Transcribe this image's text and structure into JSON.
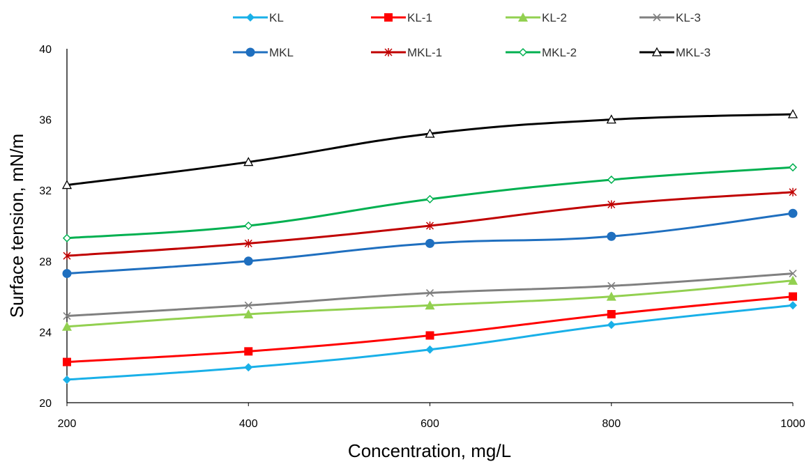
{
  "chart_data": {
    "type": "line",
    "title": "",
    "xlabel": "Concentration, mg/L",
    "ylabel": "Surface tension, mN/m",
    "x": [
      200,
      400,
      600,
      800,
      1000
    ],
    "xlim": [
      200,
      1000
    ],
    "ylim": [
      20,
      40
    ],
    "x_ticks": [
      "200",
      "400",
      "600",
      "800",
      "1000"
    ],
    "y_ticks": [
      "20",
      "24",
      "28",
      "32",
      "36",
      "40"
    ],
    "grid": false,
    "legend_position": "top",
    "series": [
      {
        "name": "KL",
        "values": [
          21.3,
          22.0,
          23.0,
          24.4,
          25.5
        ],
        "color": "#19B0E8",
        "marker": "diamond-filled"
      },
      {
        "name": "KL-1",
        "values": [
          22.3,
          22.9,
          23.8,
          25.0,
          26.0
        ],
        "color": "#FF0000",
        "marker": "square-filled"
      },
      {
        "name": "KL-2",
        "values": [
          24.3,
          25.0,
          25.5,
          26.0,
          26.9
        ],
        "color": "#92D050",
        "marker": "triangle-filled"
      },
      {
        "name": "KL-3",
        "values": [
          24.9,
          25.5,
          26.2,
          26.6,
          27.3
        ],
        "color": "#808080",
        "marker": "x"
      },
      {
        "name": "MKL",
        "values": [
          27.3,
          28.0,
          29.0,
          29.4,
          30.7
        ],
        "color": "#1F6FBF",
        "marker": "circle-filled"
      },
      {
        "name": "MKL-1",
        "values": [
          28.3,
          29.0,
          30.0,
          31.2,
          31.9
        ],
        "color": "#C00000",
        "marker": "asterisk"
      },
      {
        "name": "MKL-2",
        "values": [
          29.3,
          30.0,
          31.5,
          32.6,
          33.3
        ],
        "color": "#00B050",
        "marker": "diamond-open"
      },
      {
        "name": "MKL-3",
        "values": [
          32.3,
          33.6,
          35.2,
          36.0,
          36.3
        ],
        "color": "#000000",
        "marker": "triangle-open"
      }
    ]
  }
}
